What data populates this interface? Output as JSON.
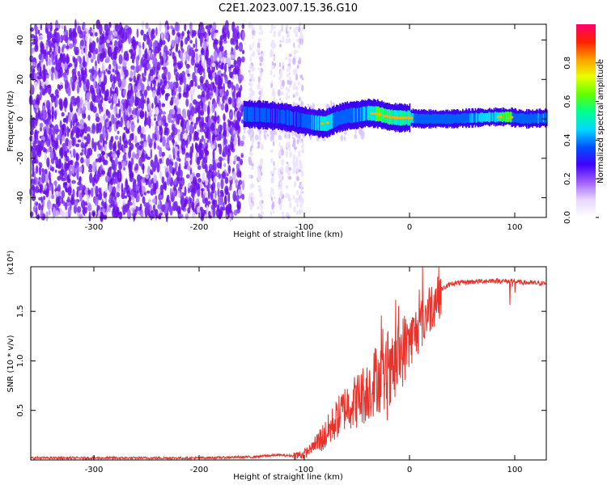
{
  "title": "C2E1.2023.007.15.36.G10",
  "colors": {
    "snr_line": "#e8322a",
    "noise": "#6a0ee0",
    "axis": "#000000",
    "colormap": [
      "#ffffff",
      "#e6d6ff",
      "#9a5cff",
      "#4a00ff",
      "#0060ff",
      "#00e0ff",
      "#00ff80",
      "#80ff00",
      "#ffff00",
      "#ff8000",
      "#ff0000",
      "#ff0080"
    ]
  },
  "chart_data": [
    {
      "type": "heatmap",
      "name": "spectrogram",
      "xlabel": "Height of straight line (km)",
      "ylabel": "Frequency (Hz)",
      "xlim": [
        -360,
        130
      ],
      "ylim": [
        -50,
        48
      ],
      "x_ticks": [
        -300,
        -200,
        -100,
        0,
        100
      ],
      "x_tick_labels": [
        "-300",
        "-200",
        "-100",
        "0",
        "100"
      ],
      "y_ticks": [
        -40,
        -20,
        0,
        20,
        40
      ],
      "y_tick_labels": [
        "-40",
        "-20",
        "0",
        "20",
        "40"
      ],
      "colorbar": {
        "label": "Normalized spectral amplitude",
        "range": [
          0,
          1
        ],
        "ticks": [
          0.0,
          0.2,
          0.4,
          0.6,
          0.8
        ],
        "tick_labels": [
          "0.0",
          "0.2",
          "0.4",
          "0.6",
          "0.8"
        ]
      },
      "noise_region": {
        "x_start": -360,
        "x_dense_end": -158,
        "x_sparse_end": -100
      },
      "signal_band": [
        {
          "x": -158,
          "y": 2.5,
          "amp": 0.45
        },
        {
          "x": -140,
          "y": 2.0,
          "amp": 0.45
        },
        {
          "x": -120,
          "y": 1.0,
          "amp": 0.45
        },
        {
          "x": -100,
          "y": -1.0,
          "amp": 0.5
        },
        {
          "x": -90,
          "y": -2.0,
          "amp": 0.6
        },
        {
          "x": -80,
          "y": -2.5,
          "amp": 0.85
        },
        {
          "x": -70,
          "y": 0.0,
          "amp": 0.5
        },
        {
          "x": -60,
          "y": 1.5,
          "amp": 0.5
        },
        {
          "x": -50,
          "y": 2.0,
          "amp": 0.55
        },
        {
          "x": -40,
          "y": 3.0,
          "amp": 0.7
        },
        {
          "x": -30,
          "y": 2.5,
          "amp": 0.85
        },
        {
          "x": -20,
          "y": 1.0,
          "amp": 0.8
        },
        {
          "x": -10,
          "y": 0.5,
          "amp": 0.75
        },
        {
          "x": 0,
          "y": 0.5,
          "amp": 0.8
        },
        {
          "x": 10,
          "y": 0.0,
          "amp": 0.5
        },
        {
          "x": 20,
          "y": 0.0,
          "amp": 0.5
        },
        {
          "x": 40,
          "y": 0.0,
          "amp": 0.5
        },
        {
          "x": 60,
          "y": 0.5,
          "amp": 0.6
        },
        {
          "x": 80,
          "y": 1.0,
          "amp": 0.7
        },
        {
          "x": 95,
          "y": 1.0,
          "amp": 0.9
        },
        {
          "x": 100,
          "y": 0.5,
          "amp": 0.5
        },
        {
          "x": 110,
          "y": 0.0,
          "amp": 0.5
        },
        {
          "x": 130,
          "y": 0.5,
          "amp": 0.6
        }
      ]
    },
    {
      "type": "line",
      "name": "snr",
      "xlabel": "Height of straight line (km)",
      "ylabel": "SNR (10 * v/v)",
      "y_scale_label": "(x10⁴)",
      "xlim": [
        -360,
        130
      ],
      "ylim": [
        0,
        1.95
      ],
      "x_ticks": [
        -300,
        -200,
        -100,
        0,
        100
      ],
      "x_tick_labels": [
        "-300",
        "-200",
        "-100",
        "0",
        "100"
      ],
      "y_ticks": [
        0.5,
        1.0,
        1.5
      ],
      "y_tick_labels": [
        "0.5",
        "1.0",
        "1.5"
      ],
      "series": [
        {
          "x": [
            -360,
            -300,
            -250,
            -200,
            -150,
            -125,
            -110,
            -100,
            -90,
            -80,
            -70,
            -60,
            -50,
            -40,
            -30,
            -20,
            -10,
            0,
            10,
            20,
            30,
            40,
            60,
            80,
            100,
            110,
            130
          ],
          "y": [
            0.02,
            0.02,
            0.02,
            0.02,
            0.03,
            0.05,
            0.04,
            0.06,
            0.15,
            0.25,
            0.4,
            0.55,
            0.6,
            0.7,
            0.85,
            0.75,
            1.05,
            1.2,
            1.35,
            1.55,
            1.72,
            1.78,
            1.8,
            1.81,
            1.8,
            1.79,
            1.78
          ]
        }
      ]
    }
  ]
}
